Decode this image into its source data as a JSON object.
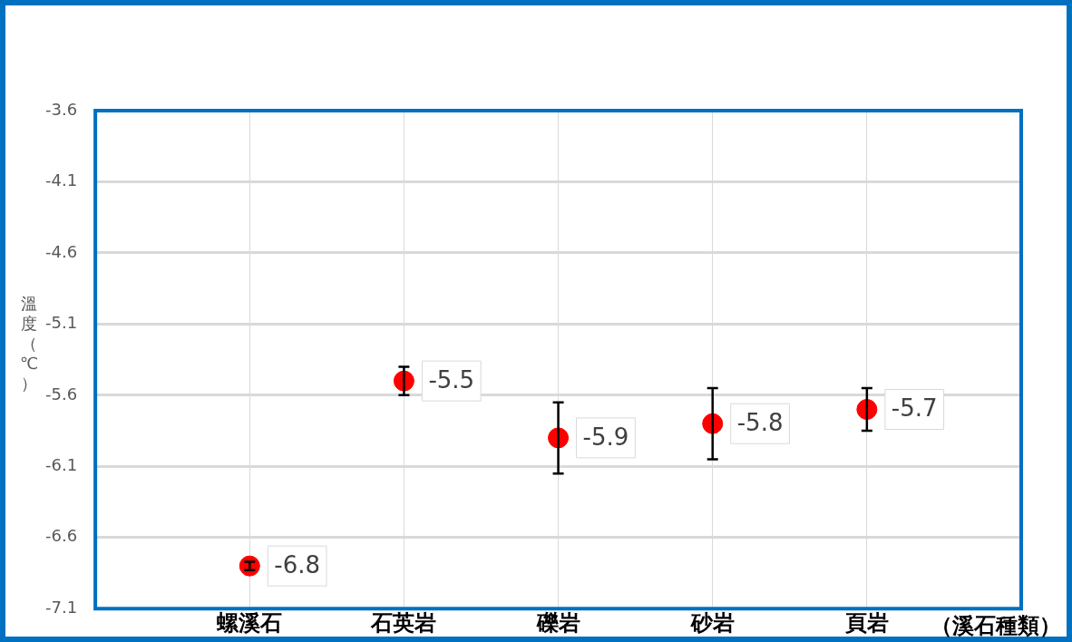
{
  "chart_data": {
    "type": "scatter",
    "xlabel": "（溪石種類）",
    "ylabel": "溫度（℃）",
    "categories": [
      "螺溪石",
      "石英岩",
      "礫岩",
      "砂岩",
      "頁岩"
    ],
    "values": [
      -6.8,
      -5.5,
      -5.9,
      -5.8,
      -5.7
    ],
    "errors": [
      0.03,
      0.1,
      0.25,
      0.25,
      0.15
    ],
    "color": "#ff0000",
    "marker": "circle",
    "data_labels": true,
    "grid": true,
    "ylim": [
      -7.1,
      -3.6
    ],
    "yticks": [
      -7.1,
      -6.6,
      -6.1,
      -5.6,
      -5.1,
      -4.6,
      -4.1,
      -3.6
    ]
  }
}
